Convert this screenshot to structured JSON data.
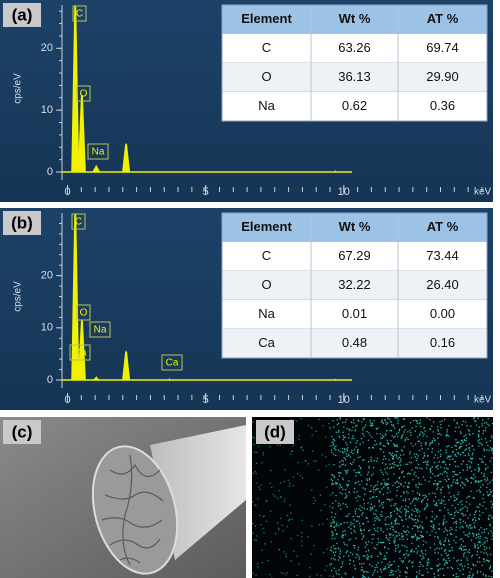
{
  "panels": [
    {
      "label": "(a)",
      "spectrum": {
        "type": "line",
        "ylabel": "cps/eV",
        "xlabel": "keV",
        "xlim": [
          -0.2,
          15.4
        ],
        "ylim": [
          0,
          27
        ],
        "xticks": [
          0,
          5,
          10
        ],
        "yticks": [
          0,
          10,
          20
        ],
        "color": "#f2f200",
        "peaks": [
          {
            "label": "C",
            "x": 0.28,
            "y": 27
          },
          {
            "label": "O",
            "x": 0.52,
            "y": 12.6
          },
          {
            "label": "Na",
            "x": 1.04,
            "y": 1.2
          },
          {
            "label": null,
            "x": 2.12,
            "y": 4.7
          },
          {
            "label": null,
            "x": 9.7,
            "y": 0.3
          }
        ]
      },
      "table": {
        "header": [
          "Element",
          "Wt %",
          "AT %"
        ],
        "rows": [
          [
            "C",
            "63.26",
            "69.74"
          ],
          [
            "O",
            "36.13",
            "29.90"
          ],
          [
            "Na",
            "0.62",
            "0.36"
          ]
        ]
      }
    },
    {
      "label": "(b)",
      "spectrum": {
        "type": "line",
        "ylabel": "cps/eV",
        "xlabel": "keV",
        "xlim": [
          -0.2,
          15.4
        ],
        "ylim": [
          0,
          32
        ],
        "xticks": [
          0,
          5,
          10
        ],
        "yticks": [
          0,
          10,
          20
        ],
        "color": "#f2f200",
        "peaks": [
          {
            "label": "C",
            "x": 0.28,
            "y": 32
          },
          {
            "label": "O",
            "x": 0.52,
            "y": 11.7
          },
          {
            "label": "Na",
            "x": 1.04,
            "y": 0.8
          },
          {
            "label": "Ca",
            "x": 0.34,
            "y": 2
          },
          {
            "label": null,
            "x": 2.12,
            "y": 5.7
          },
          {
            "label": "Ca",
            "x": 3.69,
            "y": 0.4
          },
          {
            "label": null,
            "x": 9.7,
            "y": 0.3
          }
        ]
      },
      "table": {
        "header": [
          "Element",
          "Wt %",
          "AT %"
        ],
        "rows": [
          [
            "C",
            "67.29",
            "73.44"
          ],
          [
            "O",
            "32.22",
            "26.40"
          ],
          [
            "Na",
            "0.01",
            "0.00"
          ],
          [
            "Ca",
            "0.48",
            "0.16"
          ]
        ]
      }
    },
    {
      "label": "(c)"
    },
    {
      "label": "(d)"
    }
  ]
}
